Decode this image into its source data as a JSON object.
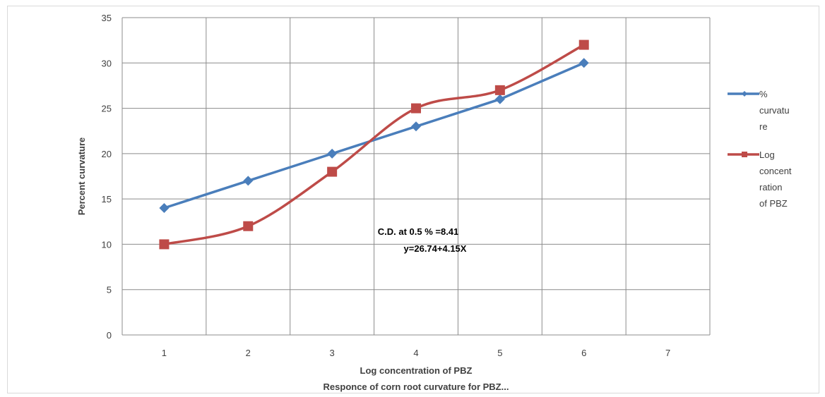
{
  "chart_data": {
    "type": "line",
    "x": [
      1,
      2,
      3,
      4,
      5,
      6
    ],
    "series": [
      {
        "name": "% curvature",
        "legend_lines": [
          "%",
          "curvatu",
          "re"
        ],
        "color": "#4a7ebb",
        "marker": "diamond",
        "values": [
          14,
          17,
          20,
          23,
          26,
          30
        ]
      },
      {
        "name": "Log concentration of PBZ",
        "legend_lines": [
          "Log",
          "concent",
          "ration",
          "of PBZ"
        ],
        "color": "#be4b48",
        "marker": "square",
        "values": [
          10,
          12,
          18,
          25,
          27,
          32
        ]
      }
    ],
    "xlabel": "Log concentration of PBZ",
    "subtitle": "Responce of corn root curvature for PBZ...",
    "ylabel": "Percent curvature",
    "xticks": [
      "1",
      "2",
      "3",
      "4",
      "5",
      "6",
      "7"
    ],
    "yticks": [
      "0",
      "5",
      "10",
      "15",
      "20",
      "25",
      "30",
      "35"
    ],
    "ylim": [
      0,
      35
    ],
    "xlim": [
      0.5,
      7.5
    ],
    "grid": true,
    "legend_position": "right",
    "annotations": [
      "C.D. at 0.5 % =8.41",
      "y=26.74+4.15X"
    ]
  }
}
